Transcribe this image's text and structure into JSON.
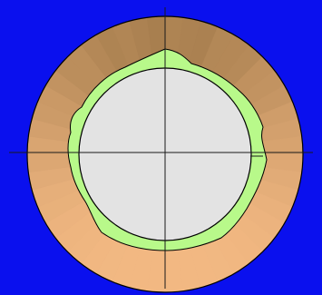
{
  "colors": {
    "background": "#0a10ee",
    "outer_ring_light": "#f2b882",
    "outer_ring_dark": "#a87f4f",
    "green_band": "#b8f98a",
    "inner_disc": "#e3e3e3",
    "outline": "#000000",
    "crosshair": "#1a1a1a"
  },
  "shading": {
    "sector_count": 48,
    "darkest_direction": "top",
    "lightest_direction": "bottom"
  }
}
